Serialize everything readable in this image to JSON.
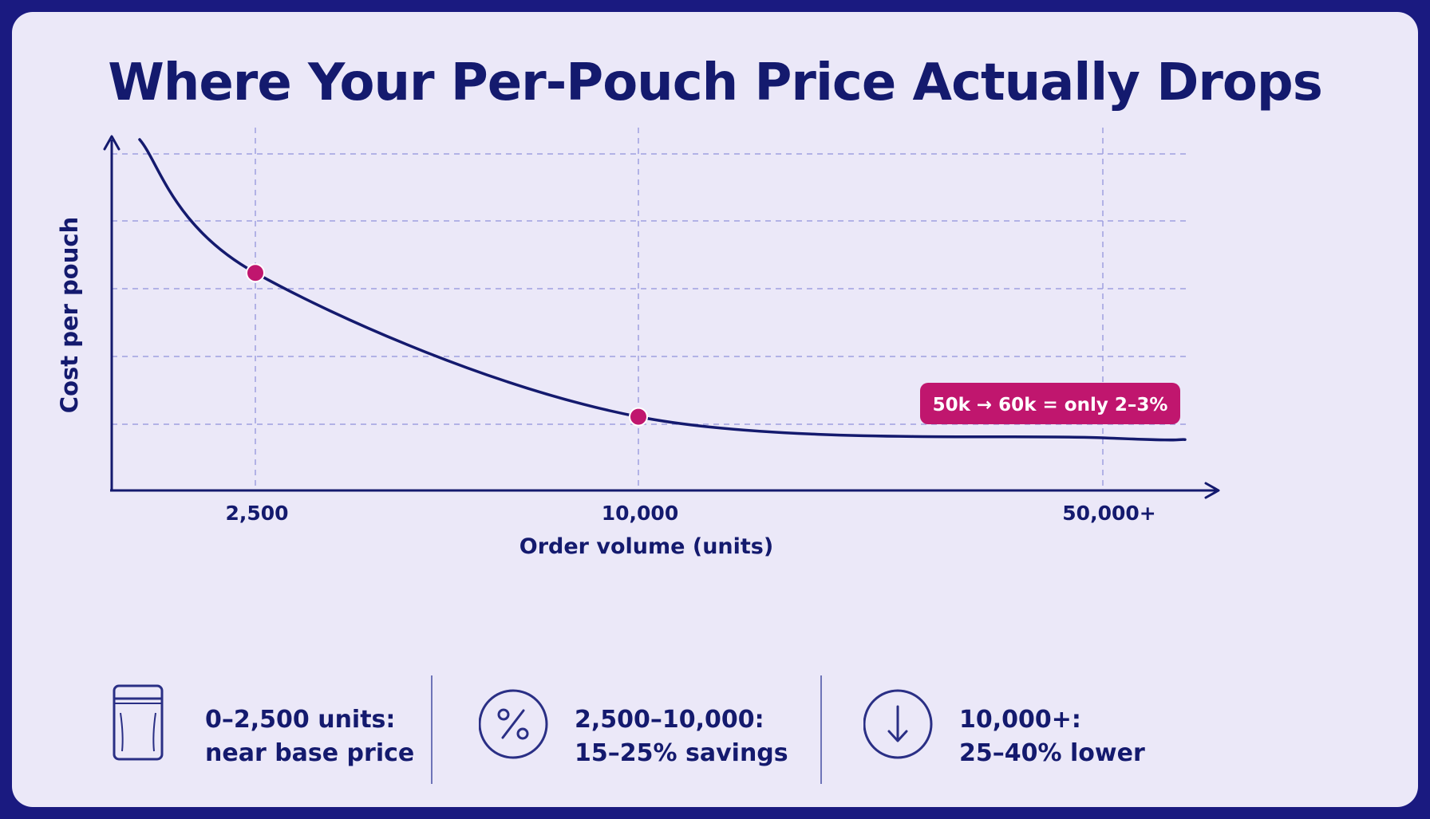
{
  "colors": {
    "frame": "#1a1a80",
    "background": "#ebe8f8",
    "curve": "#141a6e",
    "accent": "#c0166e",
    "grid": "#9fa0e0",
    "text": "#141a6e"
  },
  "title": "Where Your Per-Pouch Price Actually Drops",
  "chart_data": {
    "type": "line",
    "title": "Where Your Per-Pouch Price Actually Drops",
    "xlabel": "Order volume (units)",
    "ylabel": "Cost per pouch",
    "x_ticks": [
      "2,500",
      "10,000",
      "50,000+"
    ],
    "x_scale": "non-linear (categorical tick spacing)",
    "grid": true,
    "series": [
      {
        "values_relative_cost": [
          {
            "x": 0,
            "y": 1.0
          },
          {
            "x": 2500,
            "y": 0.62
          },
          {
            "x": 10000,
            "y": 0.21
          },
          {
            "x": 50000,
            "y": 0.15
          },
          {
            "x": 60000,
            "y": 0.145
          }
        ]
      }
    ],
    "highlighted_points": [
      {
        "x": 2500,
        "label": ""
      },
      {
        "x": 10000,
        "label": ""
      }
    ],
    "annotation": "50k → 60k = only 2–3%"
  },
  "legend": [
    {
      "icon": "pouch-icon",
      "line1": "0–2,500 units:",
      "line2": "near base price"
    },
    {
      "icon": "percent-icon",
      "line1": "2,500–10,000:",
      "line2": "15–25% savings"
    },
    {
      "icon": "down-arrow-icon",
      "line1": "10,000+:",
      "line2": "25–40% lower"
    }
  ]
}
